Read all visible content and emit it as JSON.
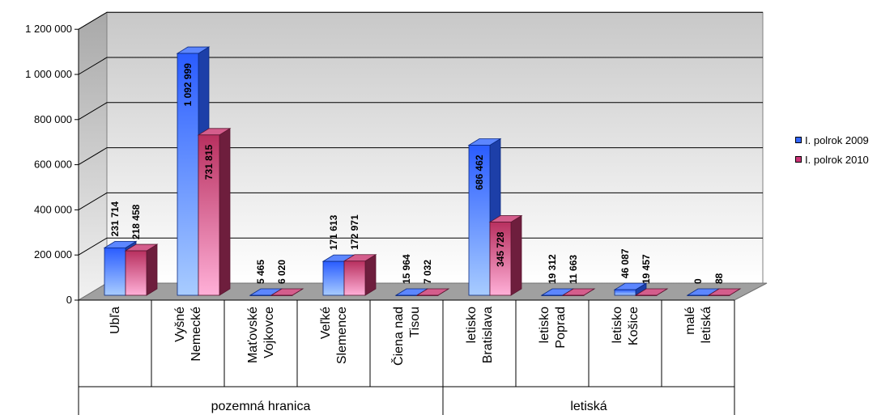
{
  "chart_data": {
    "type": "bar",
    "title": "",
    "xlabel": "",
    "ylabel": "",
    "ylim": [
      0,
      1200000
    ],
    "yticks": [
      0,
      200000,
      400000,
      600000,
      800000,
      1000000,
      1200000
    ],
    "ytick_labels": [
      "0",
      "200 000",
      "400 000",
      "600 000",
      "800 000",
      "1 000 000",
      "1 200 000"
    ],
    "categories": [
      [
        "Ubľa"
      ],
      [
        "Vyšné",
        "Nemecké"
      ],
      [
        "Maťovské",
        "Vojkovce"
      ],
      [
        "Veľké",
        "Slemence"
      ],
      [
        "Čiena nad",
        "Tisou"
      ],
      [
        "letisko",
        "Bratislava"
      ],
      [
        "letisko",
        "Poprad"
      ],
      [
        "letisko",
        "Košice"
      ],
      [
        "malé",
        "letiská"
      ]
    ],
    "groups": [
      {
        "label": "pozemná hranica",
        "count": 5
      },
      {
        "label": "letiská",
        "count": 4
      }
    ],
    "series": [
      {
        "name": "I. polrok 2009",
        "color": "#3366ff",
        "values": [
          231714,
          1092999,
          5465,
          171613,
          15964,
          686462,
          19312,
          46087,
          0
        ],
        "value_labels": [
          "231 714",
          "1 092 999",
          "5 465",
          "171 613",
          "15 964",
          "686 462",
          "19 312",
          "46 087",
          "0"
        ]
      },
      {
        "name": "I. polrok 2010",
        "color": "#cc3377",
        "values": [
          218458,
          731815,
          6020,
          172971,
          7032,
          345728,
          11663,
          19457,
          88
        ],
        "value_labels": [
          "218 458",
          "731 815",
          "6 020",
          "172 971",
          "7 032",
          "345 728",
          "11 663",
          "19 457",
          "88"
        ]
      }
    ],
    "grid": true,
    "legend_position": "right",
    "style": "3d-clustered-column"
  }
}
